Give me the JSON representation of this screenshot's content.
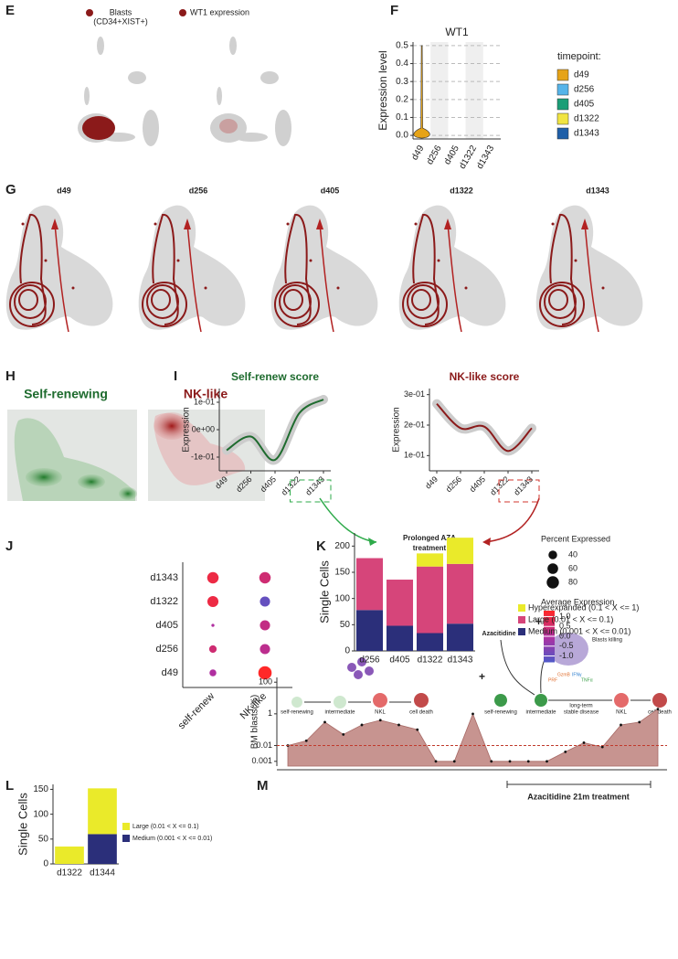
{
  "panel_labels": [
    "E",
    "F",
    "G",
    "H",
    "I",
    "J",
    "K",
    "L",
    "M"
  ],
  "umap_e": {
    "blasts_label": [
      "Blasts",
      "(CD34+XIST+)"
    ],
    "wt1_label": "WT1 expression"
  },
  "umap_g": {
    "titles": [
      "d49",
      "d256",
      "d405",
      "d1322",
      "d1343"
    ]
  },
  "density_h": {
    "titles": [
      "Self-renewing",
      "NK-like"
    ]
  },
  "schematic": {
    "left": [
      "self-renewing",
      "intermediate",
      "NKL",
      "cell death"
    ],
    "right": [
      "self-renewing",
      "intermediate",
      "NKL",
      "cell death"
    ],
    "drug": "Azacitidine",
    "killing": "Blasts killing",
    "plus": [
      "+",
      "+"
    ],
    "stable": [
      "long-term",
      "stable disease"
    ],
    "cytokines": [
      "PRF",
      "GzmB",
      "IFNγ",
      "TNFα"
    ]
  },
  "chart_data": [
    {
      "type": "violin",
      "title": "WT1",
      "ylabel": "Expression level",
      "categories": [
        "d49",
        "d256",
        "d405",
        "d1322",
        "d1343"
      ],
      "values": [
        0.5,
        null,
        null,
        null,
        null
      ],
      "colors": [
        "#e6a317",
        "#56b4e9",
        "#1b9e77",
        "#f0e442",
        "#1f5fa8"
      ],
      "legend_title": "timepoint:",
      "ylim": [
        -0.02,
        0.52
      ],
      "yticks": [
        {
          "value": 0,
          "label": "0.0"
        },
        0.1,
        0.2,
        0.3,
        0.4,
        0.5
      ],
      "grid": true
    },
    {
      "type": "line",
      "title": "Self-renew score",
      "ylabel": "Expression",
      "categories": [
        "d49",
        "d256",
        "d405",
        "d1322",
        "d1343"
      ],
      "values": [
        -0.075,
        -0.025,
        -0.11,
        0.06,
        0.11
      ],
      "color": "#1e6b2e",
      "ylim": [
        -0.15,
        0.15
      ],
      "yticks": [
        {
          "value": -0.1,
          "label": "-1e-01"
        },
        {
          "value": 0,
          "label": "0e+00"
        },
        {
          "value": 0.1,
          "label": "1e-01"
        }
      ],
      "highlight": [
        3,
        4
      ],
      "highlight_color": "#2eaa4a"
    },
    {
      "type": "line",
      "title": "NK-like score",
      "ylabel": "Expression",
      "categories": [
        "d49",
        "d256",
        "d405",
        "d1322",
        "d1343"
      ],
      "values": [
        0.27,
        0.19,
        0.195,
        0.115,
        0.19
      ],
      "color": "#8b1a1a",
      "ylim": [
        0.05,
        0.32
      ],
      "yticks": [
        {
          "value": 0.1,
          "label": "1e-01"
        },
        {
          "value": 0.2,
          "label": "2e-01"
        },
        {
          "value": 0.3,
          "label": "3e-01"
        }
      ],
      "highlight": [
        3,
        4
      ],
      "highlight_color": "#d0342c",
      "annotation": [
        "Prolonged AZA",
        "treatment"
      ]
    },
    {
      "type": "dot",
      "categories": [
        "d1343",
        "d1322",
        "d405",
        "d256",
        "d49"
      ],
      "series": [
        {
          "name": "self-renew",
          "values": [
            1.0,
            1.0,
            0.0,
            0.5,
            0.0
          ],
          "percent": [
            70,
            65,
            5,
            30,
            25
          ]
        },
        {
          "name": "NK-like",
          "values": [
            0.5,
            -1.0,
            0.3,
            0.2,
            1.3
          ],
          "percent": [
            70,
            55,
            55,
            55,
            95
          ]
        }
      ],
      "size_legend": {
        "title": "Percent Expressed",
        "ticks": [
          40,
          60,
          80
        ]
      },
      "color_legend": {
        "title": "Average Expression",
        "ticks": [
          {
            "value": 1,
            "label": "1.0"
          },
          0.5,
          {
            "value": 0,
            "label": "0.0"
          },
          -0.5,
          {
            "value": -1,
            "label": "-1.0"
          }
        ]
      },
      "color_lim": [
        -1.3,
        1.3
      ],
      "colormap": [
        "#4f5ac8",
        "#b02fa0",
        "#ff2828"
      ]
    },
    {
      "type": "bar",
      "stacked": true,
      "ylabel": "Single Cells",
      "categories": [
        "d256",
        "d405",
        "d1322",
        "d1343"
      ],
      "series": [
        {
          "name": "Medium (0.001 < X <= 0.01)",
          "color": "#2b2f7a",
          "values": [
            78,
            48,
            34,
            52
          ]
        },
        {
          "name": "Large (0.01 < X <= 0.1)",
          "color": "#d6457a",
          "values": [
            99,
            88,
            127,
            114
          ]
        },
        {
          "name": "Hyperexpanded (0.1 < X <= 1)",
          "color": "#eaea2a",
          "values": [
            0,
            0,
            25,
            50
          ]
        }
      ],
      "ylim": [
        0,
        225
      ],
      "yticks": [
        0,
        50,
        100,
        150,
        200
      ]
    },
    {
      "type": "bar",
      "stacked": true,
      "ylabel": "Single Cells",
      "categories": [
        "d1322",
        "d1344"
      ],
      "series": [
        {
          "name": "Medium (0.001 < X <= 0.01)",
          "color": "#2b2f7a",
          "values": [
            0,
            60
          ]
        },
        {
          "name": "Large (0.01 < X <= 0.1)",
          "color": "#eaea2a",
          "values": [
            35,
            92
          ]
        }
      ],
      "ylim": [
        0,
        160
      ],
      "yticks": [
        0,
        50,
        100,
        150
      ]
    },
    {
      "type": "area",
      "ylabel": "BM blasts(%)",
      "log_scale": true,
      "values": [
        0.01,
        0.02,
        0.3,
        0.05,
        0.2,
        0.4,
        0.2,
        0.1,
        0.001,
        0.001,
        1,
        0.001,
        0.001,
        0.001,
        0.001,
        0.004,
        0.015,
        0.008,
        0.2,
        0.3,
        2
      ],
      "color": "#c79490",
      "hline": 0.01,
      "ylim": [
        0.0005,
        200
      ],
      "yticks": [
        0.001,
        0.01,
        1,
        100
      ],
      "annotation": "Azacitidine 21m treatment"
    }
  ]
}
